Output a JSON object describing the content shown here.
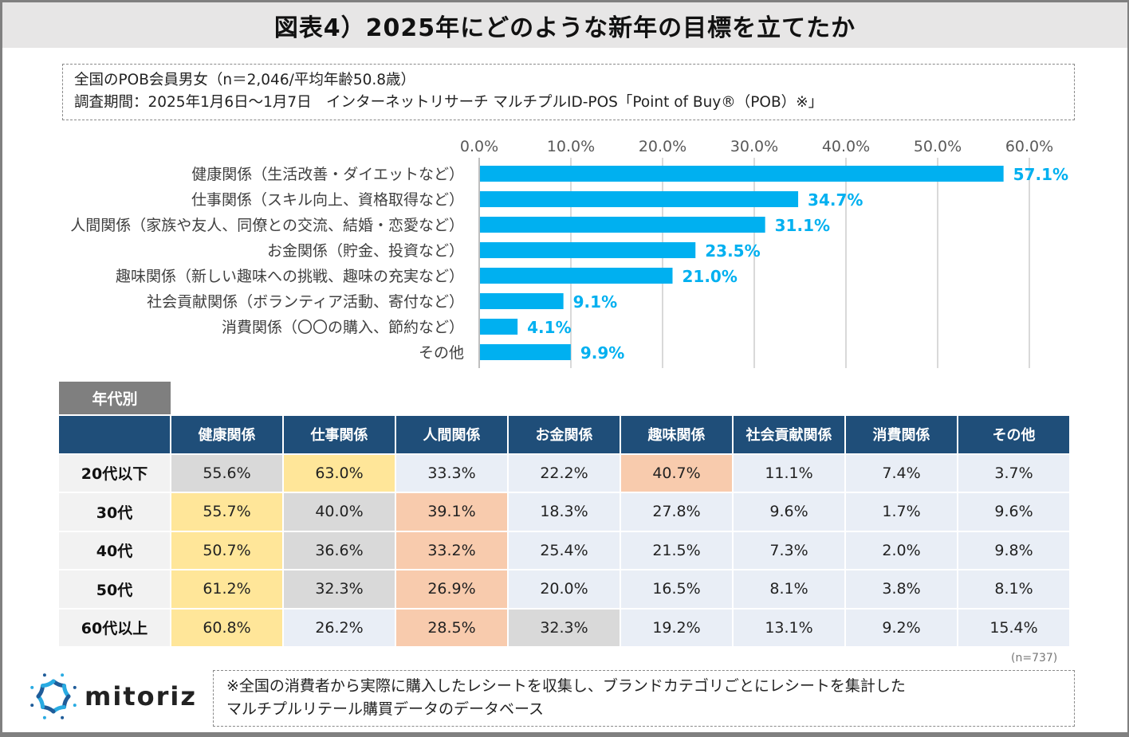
{
  "title": "図表4）2025年にどのような新年の目標を立てたか",
  "info": {
    "line1": "全国のPOB会員男女（n＝2,046/平均年齢50.8歳）",
    "line2": "調査期間：2025年1月6日～1月7日　インターネットリサーチ マルチプルID-POS「Point of Buy®（POB）※」"
  },
  "chart_data": {
    "type": "bar",
    "orientation": "horizontal",
    "title": "",
    "xlabel": "",
    "ylabel": "",
    "xlim": [
      0,
      60
    ],
    "x_ticks": [
      "0.0%",
      "10.0%",
      "20.0%",
      "30.0%",
      "40.0%",
      "50.0%",
      "60.0%"
    ],
    "x_tick_values": [
      0,
      10,
      20,
      30,
      40,
      50,
      60
    ],
    "grid": true,
    "bar_color": "#00b0f0",
    "label_color": "#00b0f0",
    "categories": [
      "健康関係（生活改善・ダイエットなど）",
      "仕事関係（スキル向上、資格取得など）",
      "人間関係（家族や友人、同僚との交流、結婚・恋愛など）",
      "お金関係（貯金、投資など）",
      "趣味関係（新しい趣味への挑戦、趣味の充実など）",
      "社会貢献関係（ボランティア活動、寄付など）",
      "消費関係（〇〇の購入、節約など）",
      "その他"
    ],
    "values": [
      57.1,
      34.7,
      31.1,
      23.5,
      21.0,
      9.1,
      4.1,
      9.9
    ],
    "data_labels": [
      "57.1%",
      "34.7%",
      "31.1%",
      "23.5%",
      "21.0%",
      "9.1%",
      "4.1%",
      "9.9%"
    ]
  },
  "table": {
    "tag": "年代別",
    "headers": [
      "",
      "健康関係",
      "仕事関係",
      "人間関係",
      "お金関係",
      "趣味関係",
      "社会貢献関係",
      "消費関係",
      "その他"
    ],
    "rows": [
      {
        "label": "20代以下",
        "cells": [
          {
            "v": "55.6%",
            "hl": "gray"
          },
          {
            "v": "63.0%",
            "hl": "yellow"
          },
          {
            "v": "33.3%",
            "hl": ""
          },
          {
            "v": "22.2%",
            "hl": ""
          },
          {
            "v": "40.7%",
            "hl": "orange"
          },
          {
            "v": "11.1%",
            "hl": ""
          },
          {
            "v": "7.4%",
            "hl": ""
          },
          {
            "v": "3.7%",
            "hl": ""
          }
        ]
      },
      {
        "label": "30代",
        "cells": [
          {
            "v": "55.7%",
            "hl": "yellow"
          },
          {
            "v": "40.0%",
            "hl": "gray"
          },
          {
            "v": "39.1%",
            "hl": "orange"
          },
          {
            "v": "18.3%",
            "hl": ""
          },
          {
            "v": "27.8%",
            "hl": ""
          },
          {
            "v": "9.6%",
            "hl": ""
          },
          {
            "v": "1.7%",
            "hl": ""
          },
          {
            "v": "9.6%",
            "hl": ""
          }
        ]
      },
      {
        "label": "40代",
        "cells": [
          {
            "v": "50.7%",
            "hl": "yellow"
          },
          {
            "v": "36.6%",
            "hl": "gray"
          },
          {
            "v": "33.2%",
            "hl": "orange"
          },
          {
            "v": "25.4%",
            "hl": ""
          },
          {
            "v": "21.5%",
            "hl": ""
          },
          {
            "v": "7.3%",
            "hl": ""
          },
          {
            "v": "2.0%",
            "hl": ""
          },
          {
            "v": "9.8%",
            "hl": ""
          }
        ]
      },
      {
        "label": "50代",
        "cells": [
          {
            "v": "61.2%",
            "hl": "yellow"
          },
          {
            "v": "32.3%",
            "hl": "gray"
          },
          {
            "v": "26.9%",
            "hl": "orange"
          },
          {
            "v": "20.0%",
            "hl": ""
          },
          {
            "v": "16.5%",
            "hl": ""
          },
          {
            "v": "8.1%",
            "hl": ""
          },
          {
            "v": "3.8%",
            "hl": ""
          },
          {
            "v": "8.1%",
            "hl": ""
          }
        ]
      },
      {
        "label": "60代以上",
        "cells": [
          {
            "v": "60.8%",
            "hl": "yellow"
          },
          {
            "v": "26.2%",
            "hl": ""
          },
          {
            "v": "28.5%",
            "hl": "orange"
          },
          {
            "v": "32.3%",
            "hl": "gray"
          },
          {
            "v": "19.2%",
            "hl": ""
          },
          {
            "v": "13.1%",
            "hl": ""
          },
          {
            "v": "9.2%",
            "hl": ""
          },
          {
            "v": "15.4%",
            "hl": ""
          }
        ]
      }
    ],
    "n_note": "(n=737)"
  },
  "footer": {
    "logo_text": "mitoriz",
    "note_line1": "※全国の消費者から実際に購入したレシートを収集し、ブランドカテゴリごとにレシートを集計した",
    "note_line2": "マルチプルリテール購買データのデータベース"
  },
  "colors": {
    "header_bg": "#1f4e79",
    "highlight_yellow": "#ffe699",
    "highlight_orange": "#f8cbad",
    "highlight_gray": "#d9d9d9",
    "cell_default": "#e9eef6",
    "logo_dark": "#1f5c99",
    "logo_light": "#29abe2"
  }
}
